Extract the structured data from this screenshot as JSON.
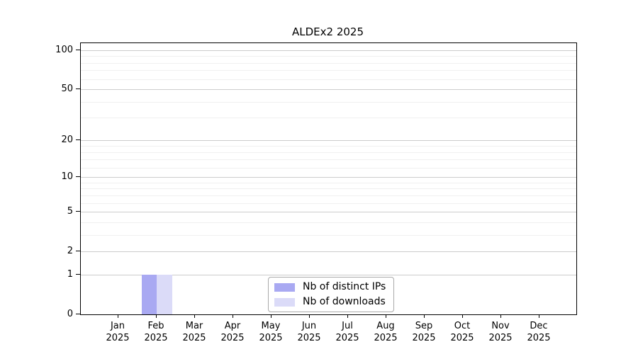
{
  "chart_data": {
    "type": "bar",
    "title": "ALDEx2 2025",
    "x": {
      "months": [
        "Jan",
        "Feb",
        "Mar",
        "Apr",
        "May",
        "Jun",
        "Jul",
        "Aug",
        "Sep",
        "Oct",
        "Nov",
        "Dec"
      ],
      "year": "2025"
    },
    "series": [
      {
        "name": "Nb of distinct IPs",
        "color": "#a9a9f2",
        "values": [
          0,
          1,
          0,
          0,
          0,
          0,
          0,
          0,
          0,
          0,
          0,
          0
        ]
      },
      {
        "name": "Nb of downloads",
        "color": "#dbdbf8",
        "values": [
          0,
          1,
          0,
          0,
          0,
          0,
          0,
          0,
          0,
          0,
          0,
          0
        ]
      }
    ],
    "y_axis": {
      "scale": "log1p",
      "tick_values": [
        0,
        1,
        2,
        5,
        10,
        20,
        50,
        100
      ],
      "minor_gridline_values": [
        3,
        4,
        6,
        7,
        8,
        9,
        12,
        14,
        16,
        18,
        30,
        40,
        60,
        70,
        80,
        90
      ],
      "range_max": 100
    },
    "legend": {
      "position": "inside-bottom-center",
      "entries": [
        "Nb of distinct IPs",
        "Nb of downloads"
      ]
    },
    "grid": "horizontal",
    "colors": {
      "major_grid": "#cccccc",
      "minor_grid": "#f0f0f0",
      "frame": "#000000",
      "background": "#ffffff"
    }
  }
}
